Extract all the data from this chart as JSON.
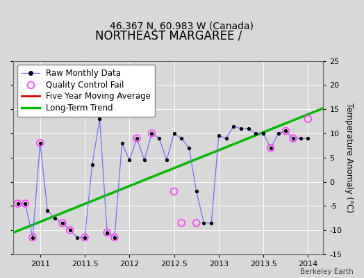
{
  "title": "NORTHEAST MARGAREE /",
  "subtitle": "46.367 N, 60.983 W (Canada)",
  "ylabel": "Temperature Anomaly (°C)",
  "watermark": "Berkeley Earth",
  "xlim": [
    2010.7,
    2014.17
  ],
  "ylim": [
    -15,
    25
  ],
  "yticks": [
    -15,
    -10,
    -5,
    0,
    5,
    10,
    15,
    20,
    25
  ],
  "xticks": [
    2011,
    2011.5,
    2012,
    2012.5,
    2013,
    2013.5,
    2014
  ],
  "xticklabels": [
    "2011",
    "2011.5",
    "2012",
    "2012.5",
    "2013",
    "2013.5",
    "2014"
  ],
  "bg_color": "#d8d8d8",
  "plot_bg_color": "#d8d8d8",
  "raw_x": [
    2010.75,
    2010.833,
    2010.917,
    2011.0,
    2011.083,
    2011.167,
    2011.25,
    2011.333,
    2011.417,
    2011.5,
    2011.583,
    2011.667,
    2011.75,
    2011.833,
    2011.917,
    2012.0,
    2012.083,
    2012.167,
    2012.25,
    2012.333,
    2012.417,
    2012.5,
    2012.583,
    2012.667,
    2012.75,
    2012.833,
    2012.917,
    2013.0,
    2013.083,
    2013.167,
    2013.25,
    2013.333,
    2013.417,
    2013.5,
    2013.583,
    2013.667,
    2013.75,
    2013.833,
    2013.917,
    2014.0
  ],
  "raw_y": [
    -4.5,
    -4.5,
    -11.5,
    8.0,
    -6.0,
    -7.5,
    -8.5,
    -10.0,
    -11.5,
    -11.5,
    3.5,
    13.0,
    -10.5,
    -11.5,
    8.0,
    4.5,
    9.0,
    4.5,
    10.0,
    9.0,
    4.5,
    10.0,
    9.0,
    7.0,
    -2.0,
    -8.5,
    -8.5,
    9.5,
    9.0,
    11.5,
    11.0,
    11.0,
    10.0,
    10.0,
    7.0,
    10.0,
    10.5,
    9.0,
    9.0,
    9.0
  ],
  "qc_x": [
    2010.75,
    2010.833,
    2010.917,
    2011.0,
    2011.25,
    2011.333,
    2011.5,
    2011.75,
    2011.833,
    2012.083,
    2012.25,
    2012.5,
    2012.583,
    2012.75,
    2013.583,
    2013.75,
    2013.833,
    2014.0
  ],
  "qc_y": [
    -4.5,
    -4.5,
    -11.5,
    8.0,
    -8.5,
    -10.0,
    -11.5,
    -10.5,
    -11.5,
    9.0,
    10.0,
    -2.0,
    -8.5,
    -8.5,
    7.0,
    10.5,
    9.0,
    13.0
  ],
  "trend_x": [
    2010.7,
    2014.17
  ],
  "trend_y": [
    -10.5,
    15.2
  ],
  "line_color": "#7070ff",
  "dot_color": "#000000",
  "qc_color": "#ff44ff",
  "trend_color": "#00bb00",
  "moving_avg_color": "#dd0000",
  "grid_color": "#ffffff",
  "title_fontsize": 12,
  "subtitle_fontsize": 10,
  "tick_fontsize": 8,
  "legend_fontsize": 8.5
}
